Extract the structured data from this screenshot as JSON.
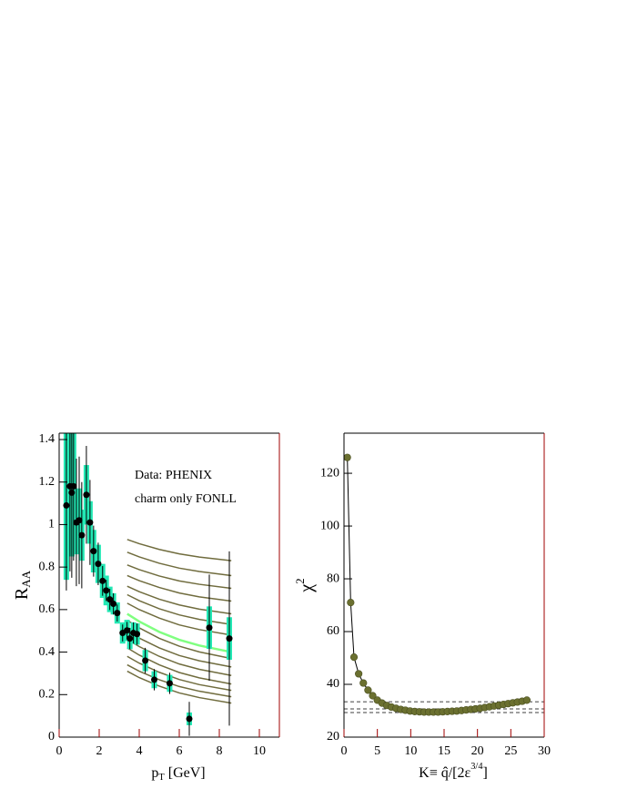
{
  "chart_data": [
    {
      "type": "errorbar",
      "xlabel": {
        "text": "p",
        "sub": "T",
        "rest": " [GeV]"
      },
      "ylabel": {
        "text": "R",
        "sub": "AA"
      },
      "annotations": [
        "Data: PHENIX",
        "charm only FONLL"
      ],
      "xlim": [
        0,
        11
      ],
      "xticks": [
        0,
        2,
        4,
        6,
        8,
        10
      ],
      "ylim": [
        0,
        1.43
      ],
      "yticks": [
        0,
        0.2,
        0.4,
        0.6,
        0.8,
        1,
        1.2,
        1.4
      ],
      "color": "#000000",
      "sys_color": "#22e8b4",
      "x": [
        0.36,
        0.54,
        0.63,
        0.72,
        0.86,
        1.0,
        1.13,
        1.36,
        1.54,
        1.72,
        1.95,
        2.17,
        2.35,
        2.53,
        2.71,
        2.9,
        3.17,
        3.39,
        3.53,
        3.71,
        3.89,
        4.3,
        4.75,
        5.52,
        6.5,
        7.5,
        8.5
      ],
      "values": [
        1.09,
        1.18,
        1.15,
        1.18,
        1.01,
        1.02,
        0.95,
        1.14,
        1.01,
        0.875,
        0.815,
        0.735,
        0.69,
        0.648,
        0.627,
        0.584,
        0.49,
        0.502,
        0.464,
        0.49,
        0.485,
        0.36,
        0.27,
        0.253,
        0.086,
        0.515,
        0.464
      ],
      "errors": [
        0.4,
        0.4,
        0.4,
        0.35,
        0.3,
        0.3,
        0.25,
        0.23,
        0.2,
        0.12,
        0.1,
        0.07,
        0.05,
        0.05,
        0.05,
        0.04,
        0.04,
        0.04,
        0.05,
        0.05,
        0.05,
        0.06,
        0.05,
        0.05,
        0.08,
        0.25,
        0.41
      ],
      "sys_errors": [
        0.35,
        0.3,
        0.3,
        0.25,
        0.15,
        0.15,
        0.12,
        0.14,
        0.1,
        0.1,
        0.09,
        0.08,
        0.07,
        0.06,
        0.05,
        0.05,
        0.05,
        0.05,
        0.05,
        0.05,
        0.05,
        0.05,
        0.04,
        0.04,
        0.03,
        0.1,
        0.1
      ],
      "curve_x": [
        3.4,
        4,
        5,
        6,
        7,
        8.6
      ],
      "curves": [
        {
          "color": "#706c3e",
          "values": [
            0.93,
            0.91,
            0.883,
            0.862,
            0.847,
            0.83
          ]
        },
        {
          "color": "#706c3e",
          "values": [
            0.87,
            0.848,
            0.818,
            0.795,
            0.779,
            0.76
          ]
        },
        {
          "color": "#706c3e",
          "values": [
            0.81,
            0.788,
            0.758,
            0.735,
            0.719,
            0.7
          ]
        },
        {
          "color": "#706c3e",
          "values": [
            0.76,
            0.736,
            0.704,
            0.678,
            0.66,
            0.64
          ]
        },
        {
          "color": "#706c3e",
          "values": [
            0.71,
            0.684,
            0.649,
            0.622,
            0.602,
            0.58
          ]
        },
        {
          "color": "#706c3e",
          "values": [
            0.67,
            0.642,
            0.604,
            0.575,
            0.554,
            0.53
          ]
        },
        {
          "color": "#706c3e",
          "values": [
            0.63,
            0.6,
            0.56,
            0.528,
            0.506,
            0.48
          ]
        },
        {
          "color": "#80ff80",
          "values": [
            0.58,
            0.544,
            0.495,
            0.458,
            0.431,
            0.4
          ]
        },
        {
          "color": "#706c3e",
          "values": [
            0.55,
            0.514,
            0.465,
            0.428,
            0.401,
            0.37
          ]
        },
        {
          "color": "#706c3e",
          "values": [
            0.5,
            0.466,
            0.42,
            0.384,
            0.359,
            0.33
          ]
        },
        {
          "color": "#706c3e",
          "values": [
            0.46,
            0.426,
            0.38,
            0.344,
            0.319,
            0.29
          ]
        },
        {
          "color": "#706c3e",
          "values": [
            0.42,
            0.386,
            0.34,
            0.304,
            0.279,
            0.25
          ]
        },
        {
          "color": "#706c3e",
          "values": [
            0.38,
            0.348,
            0.305,
            0.271,
            0.247,
            0.22
          ]
        },
        {
          "color": "#706c3e",
          "values": [
            0.34,
            0.31,
            0.27,
            0.238,
            0.216,
            0.19
          ]
        },
        {
          "color": "#706c3e",
          "values": [
            0.31,
            0.28,
            0.24,
            0.208,
            0.186,
            0.16
          ]
        }
      ]
    },
    {
      "type": "scatter",
      "xlabel": {
        "text": "K≡ q̂/[2ε",
        "sup": "3/4",
        "rest": "]"
      },
      "ylabel": {
        "text": "χ",
        "sup": "2"
      },
      "xlim": [
        0,
        30
      ],
      "xticks": [
        0,
        5,
        10,
        15,
        20,
        25,
        30
      ],
      "ylim": [
        20,
        135.2
      ],
      "yticks": [
        20,
        40,
        60,
        80,
        100,
        120
      ],
      "color": "#6b7030",
      "line": true,
      "hlines": [
        29.3,
        30.7,
        33.4
      ],
      "x": [
        0.5,
        1.0,
        1.5,
        2.2,
        2.9,
        3.6,
        4.3,
        5.0,
        5.7,
        6.4,
        7.1,
        7.8,
        8.5,
        9.2,
        9.9,
        10.6,
        11.3,
        12.0,
        12.7,
        13.4,
        14.1,
        14.8,
        15.5,
        16.2,
        16.9,
        17.6,
        18.3,
        19.0,
        19.7,
        20.4,
        21.1,
        21.8,
        22.5,
        23.2,
        23.9,
        24.6,
        25.3,
        26.0,
        26.7,
        27.4
      ],
      "values": [
        126,
        71,
        50.3,
        44,
        40.5,
        37.8,
        35.7,
        34,
        32.9,
        32,
        31.4,
        30.9,
        30.5,
        30.2,
        29.9,
        29.7,
        29.6,
        29.5,
        29.5,
        29.5,
        29.5,
        29.6,
        29.7,
        29.8,
        29.9,
        30.1,
        30.3,
        30.5,
        30.7,
        30.9,
        31.2,
        31.5,
        31.8,
        32.1,
        32.4,
        32.7,
        33.0,
        33.3,
        33.6,
        34.0
      ]
    }
  ]
}
